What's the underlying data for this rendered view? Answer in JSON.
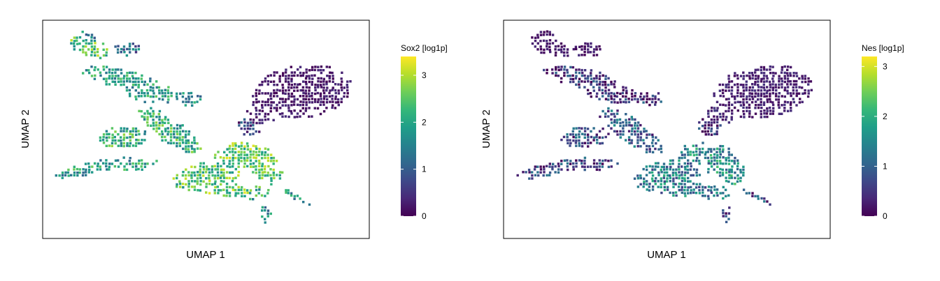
{
  "colors": {
    "viridis": [
      "#440154",
      "#482878",
      "#3e4989",
      "#31688e",
      "#26828e",
      "#1f9e89",
      "#35b779",
      "#6ece58",
      "#b5de2b",
      "#fde725"
    ],
    "frame": "#000000"
  },
  "chart_data": [
    {
      "type": "heatmap",
      "title": "",
      "xlabel": "UMAP 1",
      "ylabel": "UMAP 2",
      "grid": false,
      "legend_placement": "right",
      "colorbar": {
        "title": "Sox2 [log1p]",
        "min": 0,
        "max": 3.4,
        "ticks": [
          0,
          1,
          2,
          3
        ],
        "tick_labels": [
          "0",
          "1",
          "2",
          "3"
        ]
      },
      "colormap": "viridis",
      "level_note": "moderate-to-high expression across most of the embedding; low in the upper-right cluster"
    },
    {
      "type": "heatmap",
      "title": "",
      "xlabel": "UMAP 1",
      "ylabel": "UMAP 2",
      "grid": false,
      "legend_placement": "right",
      "colorbar": {
        "title": "Nes [log1p]",
        "min": 0,
        "max": 3.2,
        "ticks": [
          0,
          1,
          2,
          3
        ],
        "tick_labels": [
          "0",
          "1",
          "2",
          "3"
        ]
      },
      "colormap": "viridis",
      "level_note": "low expression overall; modest expression in the central and lower-middle regions"
    }
  ]
}
